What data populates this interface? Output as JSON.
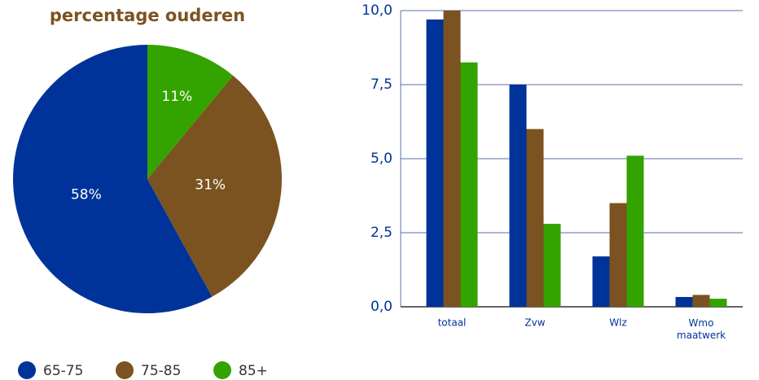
{
  "chart_data": [
    {
      "type": "pie",
      "title": "percentage ouderen",
      "categories": [
        "65-75",
        "75-85",
        "85+"
      ],
      "values": [
        58,
        31,
        11
      ],
      "value_labels": [
        "58%",
        "31%",
        "11%"
      ],
      "colors": [
        "#003399",
        "#7b5320",
        "#33a300"
      ],
      "legend": "bottom"
    },
    {
      "type": "bar",
      "categories": [
        "totaal",
        "Zvw",
        "Wlz",
        "Wmo maatwerk"
      ],
      "series": [
        {
          "color": "#003399",
          "values": [
            9.7,
            7.5,
            1.7,
            0.33
          ]
        },
        {
          "color": "#7b5320",
          "values": [
            10.0,
            6.0,
            3.5,
            0.4
          ]
        },
        {
          "color": "#33a300",
          "values": [
            8.25,
            2.8,
            5.1,
            0.27
          ]
        }
      ],
      "ylim": [
        0,
        10
      ],
      "yticks": [
        {
          "value": 0,
          "label": "0,0"
        },
        {
          "value": 2.5,
          "label": "2,5"
        },
        {
          "value": 5,
          "label": "5,0"
        },
        {
          "value": 7.5,
          "label": "7,5"
        },
        {
          "value": 10,
          "label": "10,0"
        }
      ],
      "grid": true
    }
  ]
}
